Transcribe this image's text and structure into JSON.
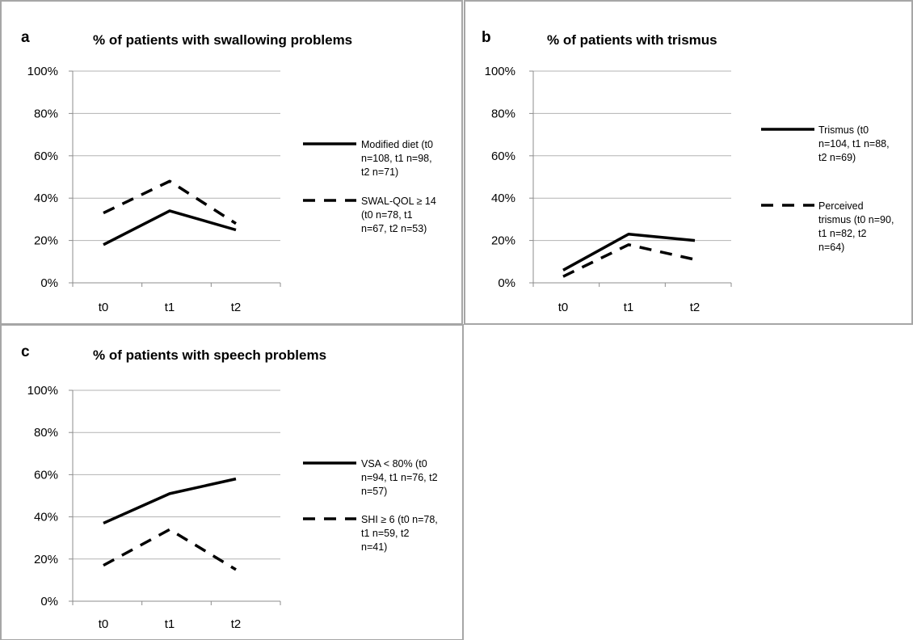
{
  "chart_data": [
    {
      "type": "line",
      "panel": "a",
      "title": "% of patients with swallowing problems",
      "categories": [
        "t0",
        "t1",
        "t2"
      ],
      "y_ticks": [
        "0%",
        "20%",
        "40%",
        "60%",
        "80%",
        "100%"
      ],
      "ylim": [
        0,
        100
      ],
      "grid": true,
      "legend_position": "right",
      "series": [
        {
          "name": [
            "Modified diet (t0",
            "n=108, t1 n=98,",
            "t2 n=71)"
          ],
          "style": "solid",
          "values": [
            18,
            34,
            25
          ]
        },
        {
          "name": [
            "SWAL-QOL ≥ 14",
            "(t0 n=78, t1",
            "n=67, t2 n=53)"
          ],
          "style": "dashed",
          "values": [
            33,
            48,
            28
          ]
        }
      ]
    },
    {
      "type": "line",
      "panel": "b",
      "title": "% of patients with trismus",
      "categories": [
        "t0",
        "t1",
        "t2"
      ],
      "y_ticks": [
        "0%",
        "20%",
        "40%",
        "60%",
        "80%",
        "100%"
      ],
      "ylim": [
        0,
        100
      ],
      "grid": true,
      "legend_position": "right",
      "series": [
        {
          "name": [
            "Trismus (t0",
            "n=104, t1 n=88,",
            "t2 n=69)"
          ],
          "style": "solid",
          "values": [
            6,
            23,
            20
          ]
        },
        {
          "name": [
            "Perceived",
            "trismus (t0 n=90,",
            "t1 n=82, t2",
            "n=64)"
          ],
          "style": "dashed",
          "values": [
            3,
            18,
            11
          ]
        }
      ]
    },
    {
      "type": "line",
      "panel": "c",
      "title": "% of patients with speech problems",
      "categories": [
        "t0",
        "t1",
        "t2"
      ],
      "y_ticks": [
        "0%",
        "20%",
        "40%",
        "60%",
        "80%",
        "100%"
      ],
      "ylim": [
        0,
        100
      ],
      "grid": true,
      "legend_position": "right",
      "series": [
        {
          "name": [
            "VSA < 80% (t0",
            "n=94, t1 n=76, t2",
            "n=57)"
          ],
          "style": "solid",
          "values": [
            37,
            51,
            58
          ]
        },
        {
          "name": [
            "SHI ≥ 6 (t0 n=78,",
            "t1 n=59, t2",
            "n=41)"
          ],
          "style": "dashed",
          "values": [
            17,
            34,
            15
          ]
        }
      ]
    }
  ]
}
